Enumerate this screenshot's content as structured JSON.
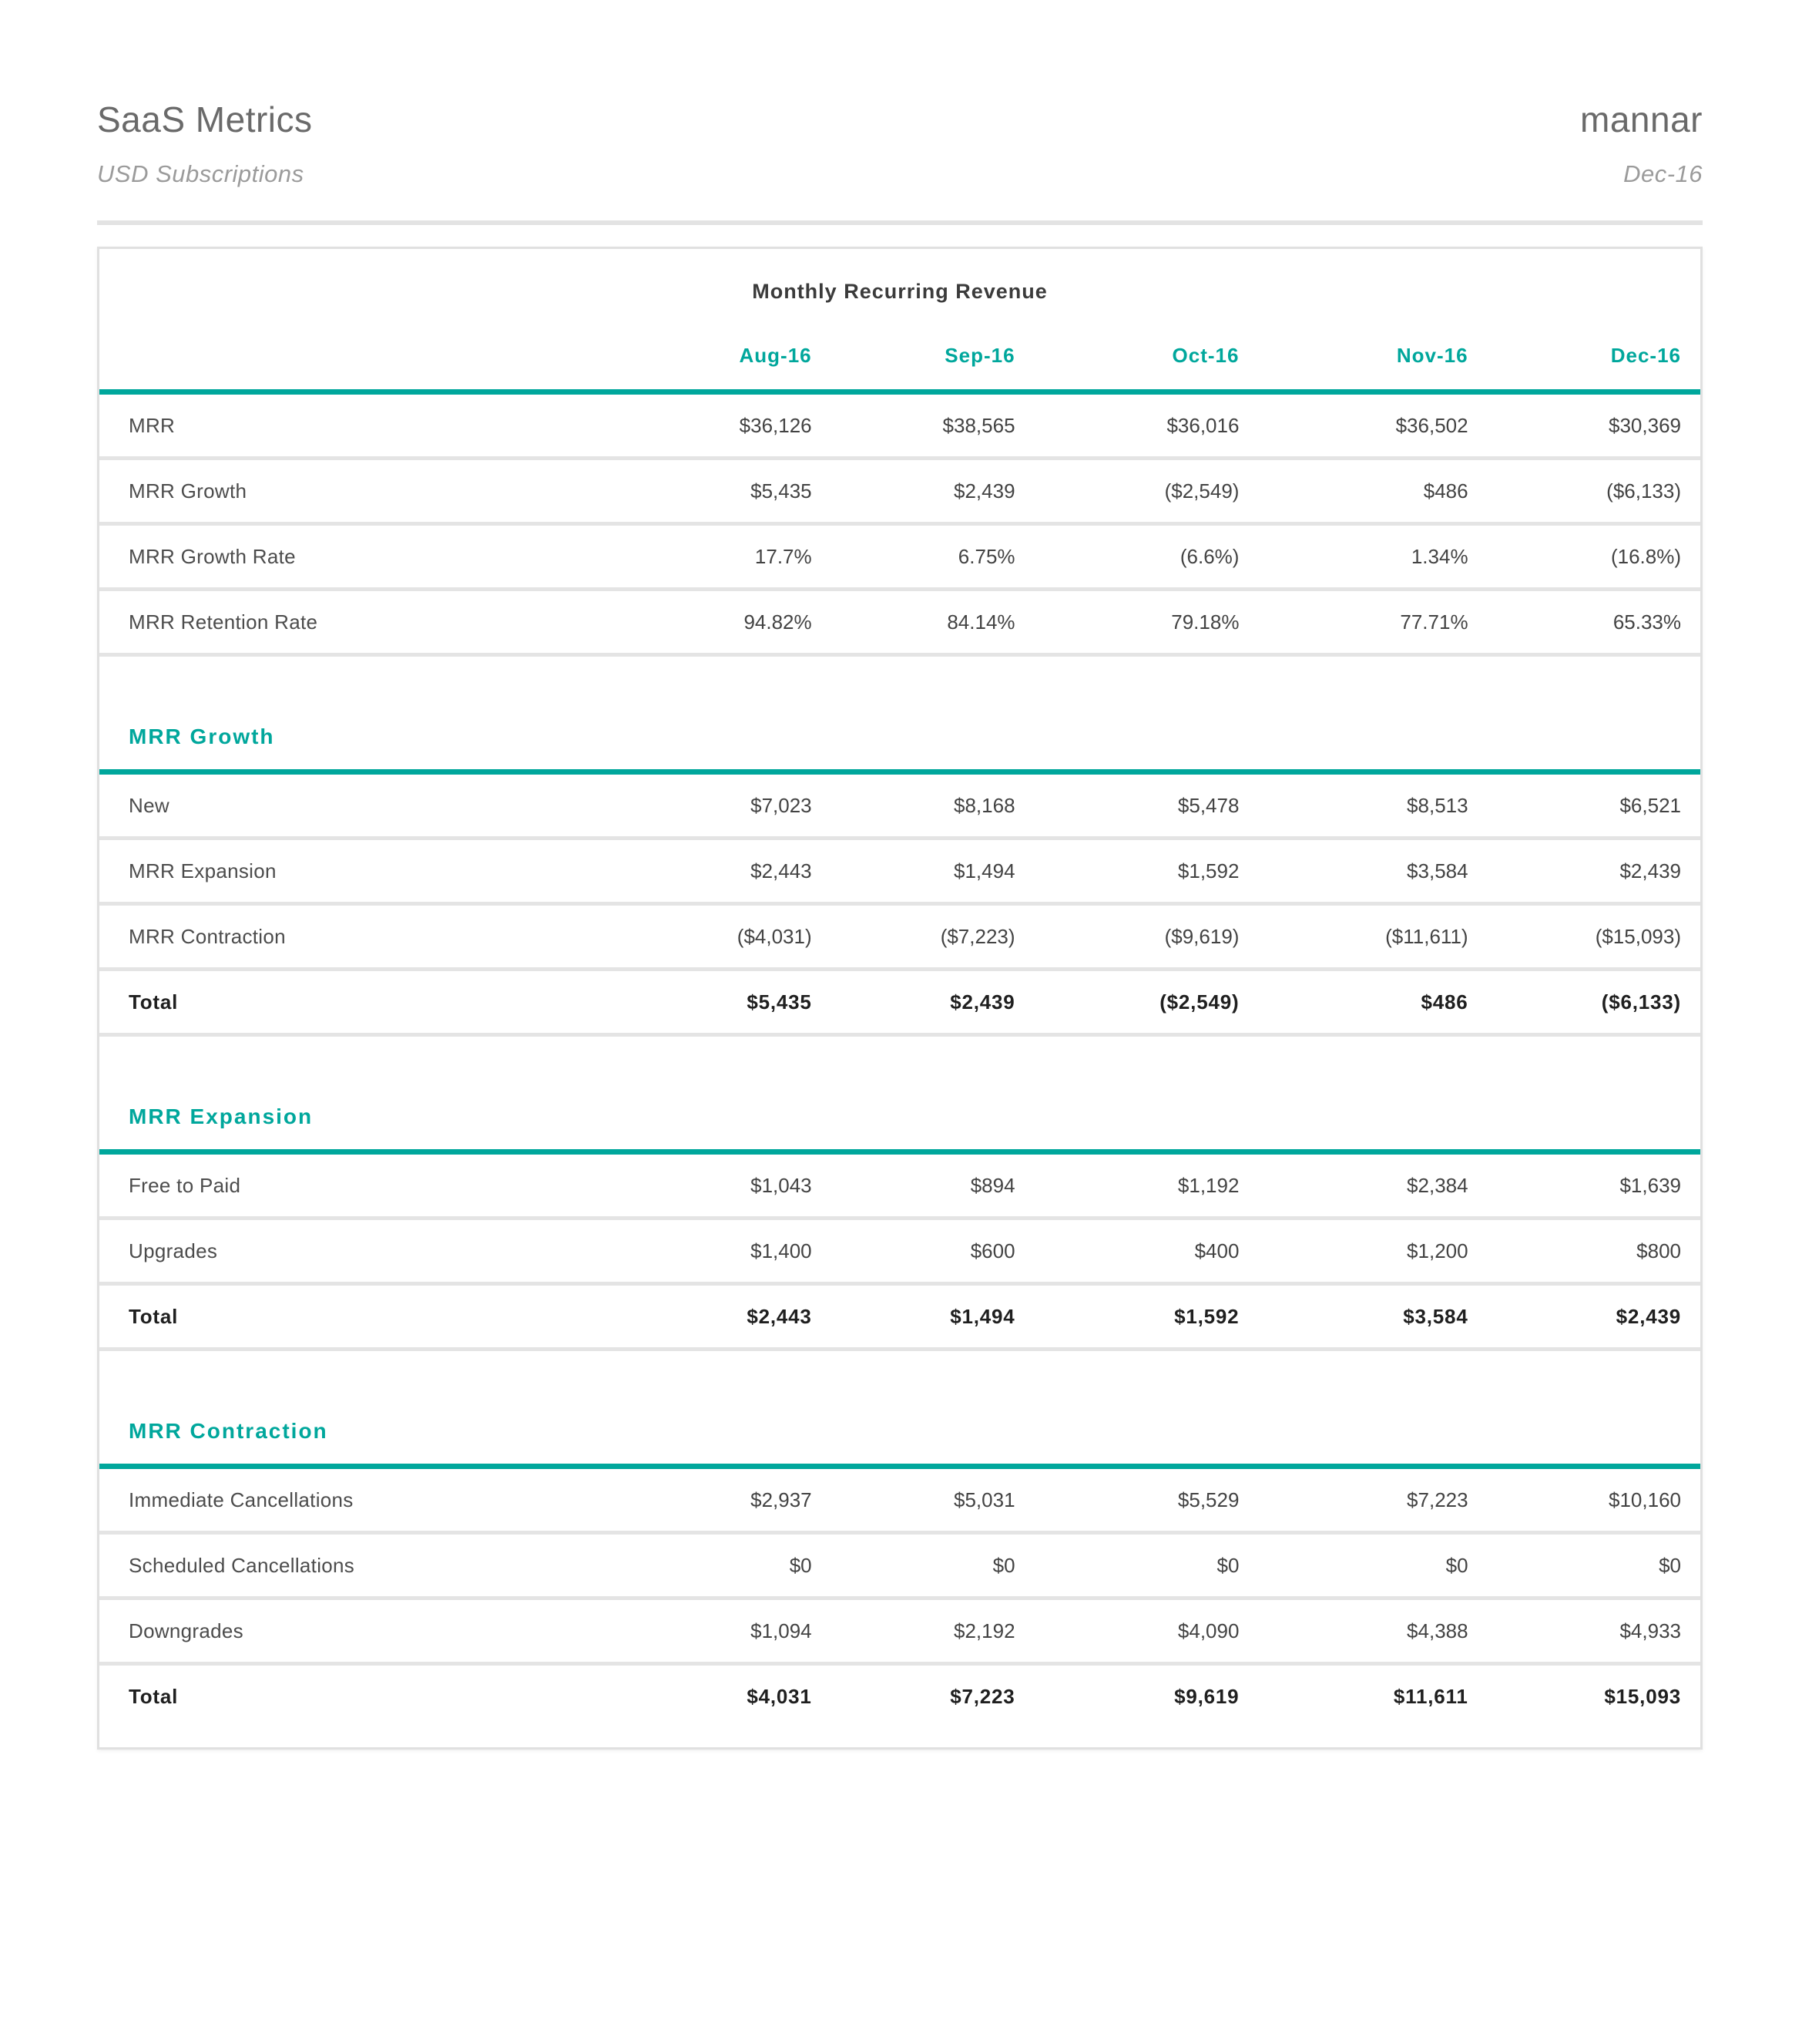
{
  "header": {
    "title": "SaaS Metrics",
    "subtitle": "USD Subscriptions",
    "brand": "mannar",
    "period": "Dec-16"
  },
  "colors": {
    "accent": "#00A79C",
    "separator": "#e4e4e4",
    "header_text": "#6a6a6a",
    "muted_text": "#9b9b9b"
  },
  "chart_data": {
    "type": "table",
    "title": "Monthly Recurring Revenue",
    "columns": [
      "Aug-16",
      "Sep-16",
      "Oct-16",
      "Nov-16",
      "Dec-16"
    ],
    "sections": [
      {
        "name": "",
        "rows": [
          {
            "label": "MRR",
            "values": [
              "$36,126",
              "$38,565",
              "$36,016",
              "$36,502",
              "$30,369"
            ],
            "is_total": false
          },
          {
            "label": "MRR Growth",
            "values": [
              "$5,435",
              "$2,439",
              "($2,549)",
              "$486",
              "($6,133)"
            ],
            "is_total": false
          },
          {
            "label": "MRR Growth Rate",
            "values": [
              "17.7%",
              "6.75%",
              "(6.6%)",
              "1.34%",
              "(16.8%)"
            ],
            "is_total": false
          },
          {
            "label": "MRR Retention Rate",
            "values": [
              "94.82%",
              "84.14%",
              "79.18%",
              "77.71%",
              "65.33%"
            ],
            "is_total": false
          }
        ]
      },
      {
        "name": "MRR Growth",
        "rows": [
          {
            "label": "New",
            "values": [
              "$7,023",
              "$8,168",
              "$5,478",
              "$8,513",
              "$6,521"
            ],
            "is_total": false
          },
          {
            "label": "MRR Expansion",
            "values": [
              "$2,443",
              "$1,494",
              "$1,592",
              "$3,584",
              "$2,439"
            ],
            "is_total": false
          },
          {
            "label": "MRR Contraction",
            "values": [
              "($4,031)",
              "($7,223)",
              "($9,619)",
              "($11,611)",
              "($15,093)"
            ],
            "is_total": false
          },
          {
            "label": "Total",
            "values": [
              "$5,435",
              "$2,439",
              "($2,549)",
              "$486",
              "($6,133)"
            ],
            "is_total": true
          }
        ]
      },
      {
        "name": "MRR Expansion",
        "rows": [
          {
            "label": "Free to Paid",
            "values": [
              "$1,043",
              "$894",
              "$1,192",
              "$2,384",
              "$1,639"
            ],
            "is_total": false
          },
          {
            "label": "Upgrades",
            "values": [
              "$1,400",
              "$600",
              "$400",
              "$1,200",
              "$800"
            ],
            "is_total": false
          },
          {
            "label": "Total",
            "values": [
              "$2,443",
              "$1,494",
              "$1,592",
              "$3,584",
              "$2,439"
            ],
            "is_total": true
          }
        ]
      },
      {
        "name": "MRR Contraction",
        "rows": [
          {
            "label": "Immediate Cancellations",
            "values": [
              "$2,937",
              "$5,031",
              "$5,529",
              "$7,223",
              "$10,160"
            ],
            "is_total": false
          },
          {
            "label": "Scheduled Cancellations",
            "values": [
              "$0",
              "$0",
              "$0",
              "$0",
              "$0"
            ],
            "is_total": false
          },
          {
            "label": "Downgrades",
            "values": [
              "$1,094",
              "$2,192",
              "$4,090",
              "$4,388",
              "$4,933"
            ],
            "is_total": false
          },
          {
            "label": "Total",
            "values": [
              "$4,031",
              "$7,223",
              "$9,619",
              "$11,611",
              "$15,093"
            ],
            "is_total": true
          }
        ]
      }
    ]
  }
}
